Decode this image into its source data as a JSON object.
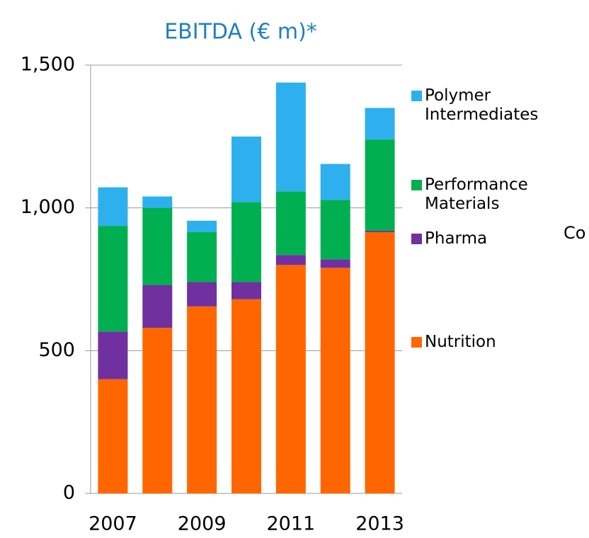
{
  "chart_data": {
    "type": "stacked_bar",
    "title": "EBITDA  (€ m)*",
    "annotations": [
      "Co"
    ],
    "categories": [
      "2007",
      null,
      "2009",
      null,
      "2011",
      null,
      "2013"
    ],
    "series": [
      {
        "name": "Nutrition",
        "color": "#ff6600",
        "values": [
          400,
          580,
          655,
          680,
          800,
          790,
          915
        ]
      },
      {
        "name": "Pharma",
        "color": "#7030a0",
        "values": [
          167,
          150,
          85,
          60,
          35,
          30,
          5
        ]
      },
      {
        "name": "Performance Materials",
        "color": "#00b050",
        "values": [
          370,
          270,
          175,
          280,
          223,
          208,
          320
        ]
      },
      {
        "name": "Polymer Intermediates",
        "color": "#2eb0ee",
        "values": [
          135,
          40,
          40,
          230,
          381,
          126,
          110
        ]
      }
    ],
    "ylim": [
      0,
      1500
    ],
    "yticks": [
      0,
      500,
      {
        "value": 1000,
        "label": "1,000"
      },
      {
        "value": 1500,
        "label": "1,500"
      }
    ],
    "grid": true
  }
}
